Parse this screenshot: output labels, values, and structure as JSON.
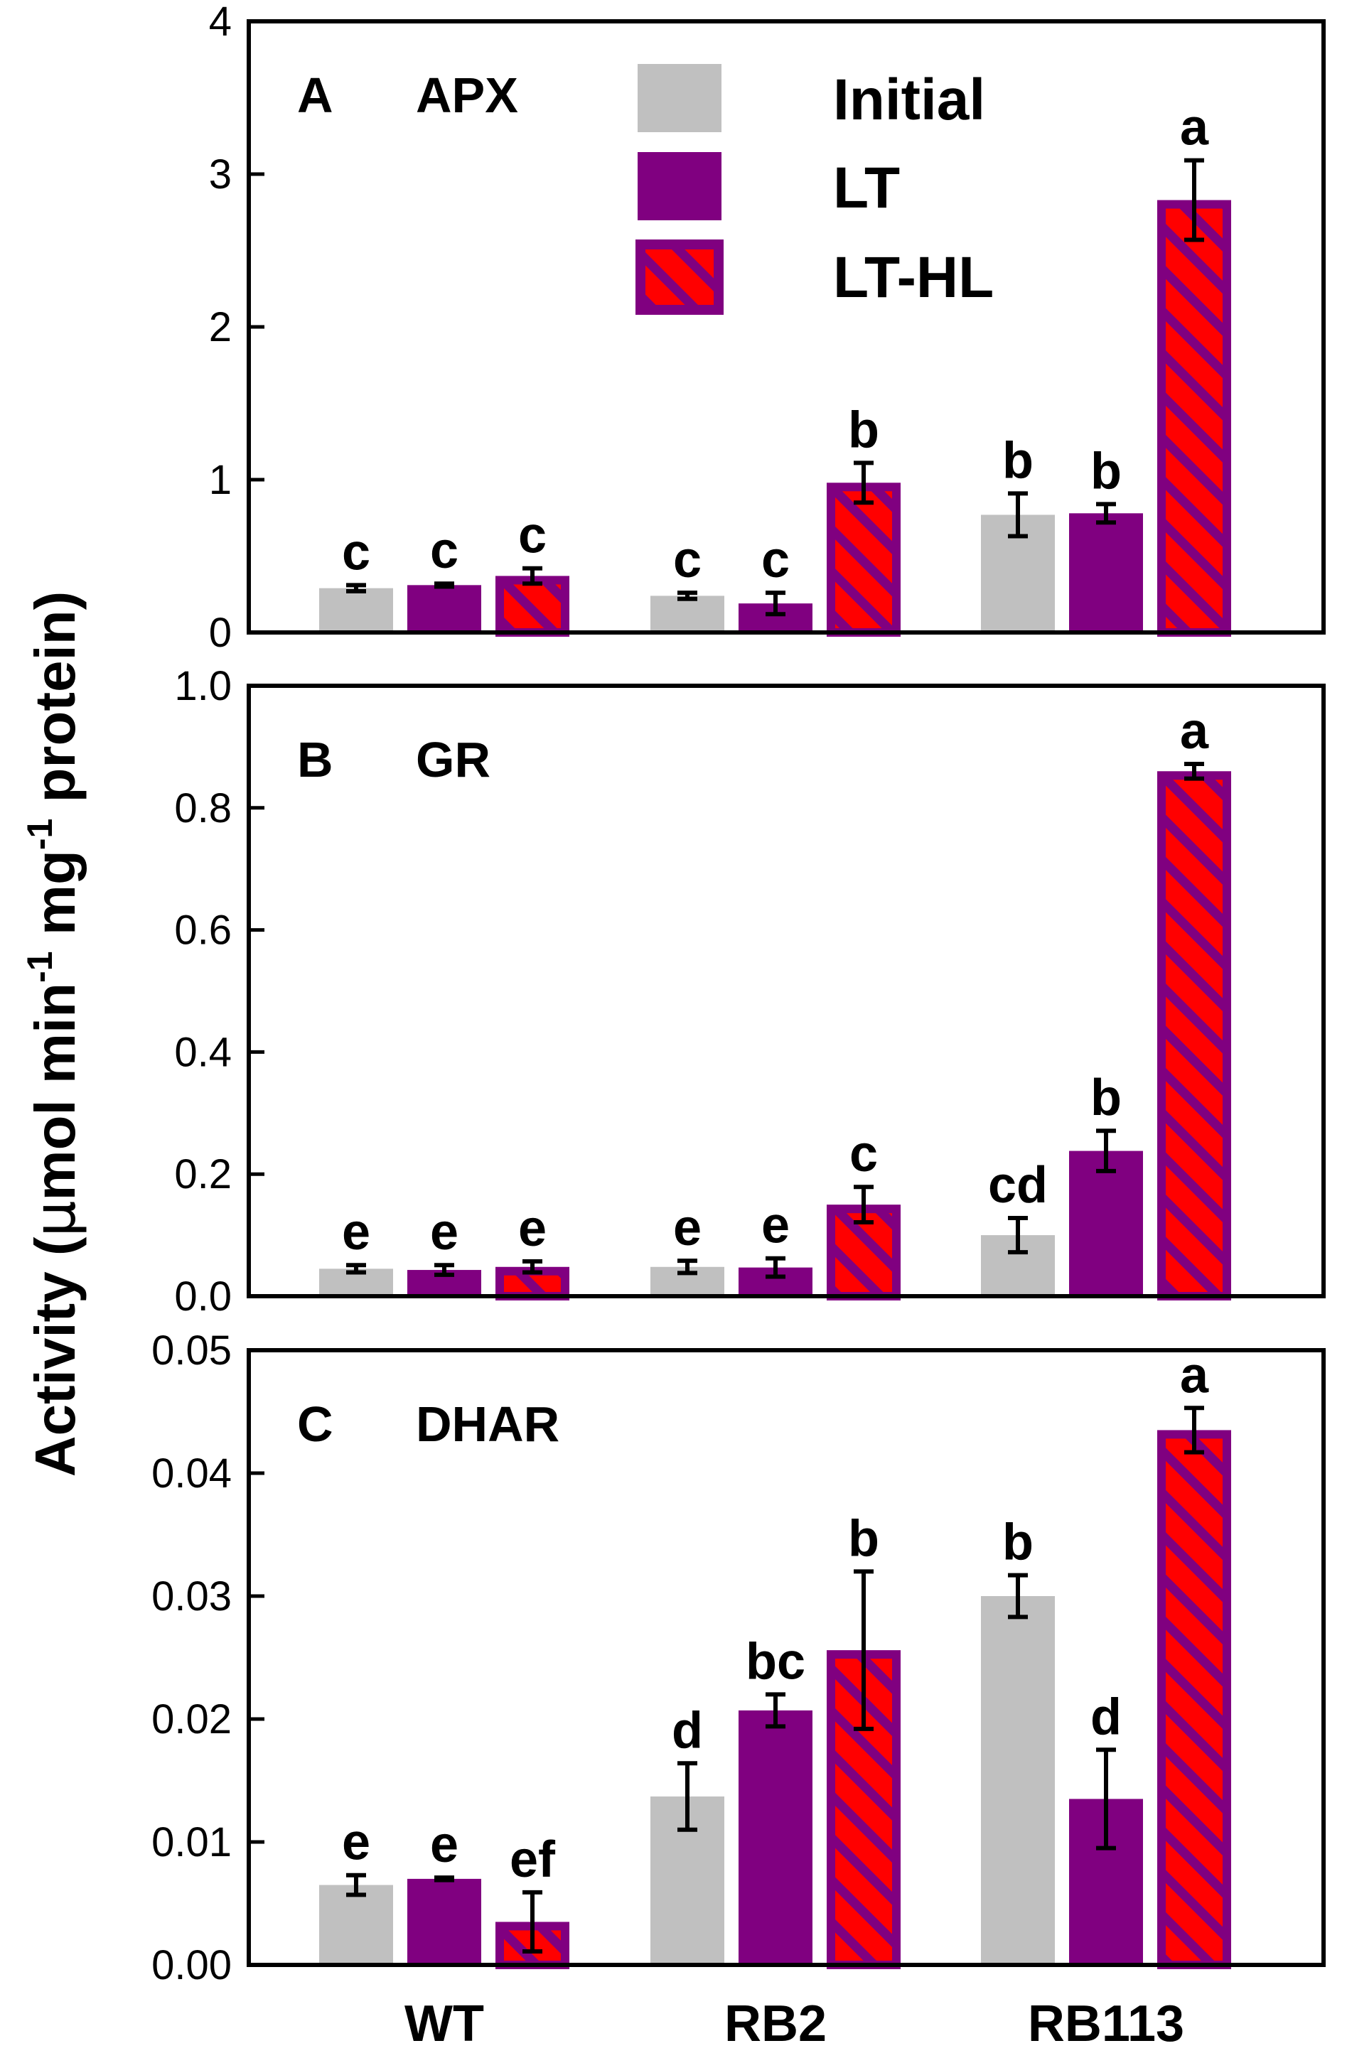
{
  "chart_data": [
    {
      "type": "bar",
      "panel_letter": "A",
      "title": "APX",
      "categories": [
        "WT",
        "RB2",
        "RB113"
      ],
      "ylim": [
        0,
        4
      ],
      "yticks": [
        "0",
        "1",
        "2",
        "3",
        "4"
      ],
      "series": [
        {
          "name": "Initial",
          "values": [
            0.29,
            0.24,
            0.77
          ],
          "errors": [
            0.02,
            0.02,
            0.14
          ],
          "labels": [
            "c",
            "c",
            "b"
          ]
        },
        {
          "name": "LT",
          "values": [
            0.31,
            0.19,
            0.78
          ],
          "errors": [
            0.01,
            0.07,
            0.06
          ],
          "labels": [
            "c",
            "c",
            "b"
          ]
        },
        {
          "name": "LT-HL",
          "values": [
            0.37,
            0.98,
            2.83
          ],
          "errors": [
            0.05,
            0.13,
            0.26
          ],
          "labels": [
            "c",
            "b",
            "a"
          ]
        }
      ]
    },
    {
      "type": "bar",
      "panel_letter": "B",
      "title": "GR",
      "categories": [
        "WT",
        "RB2",
        "RB113"
      ],
      "ylim": [
        0,
        1.0
      ],
      "yticks": [
        "0.0",
        "0.2",
        "0.4",
        "0.6",
        "0.8",
        "1.0"
      ],
      "series": [
        {
          "name": "Initial",
          "values": [
            0.045,
            0.048,
            0.1
          ],
          "errors": [
            0.006,
            0.01,
            0.028
          ],
          "labels": [
            "e",
            "e",
            "cd"
          ]
        },
        {
          "name": "LT",
          "values": [
            0.043,
            0.047,
            0.238
          ],
          "errors": [
            0.008,
            0.015,
            0.033
          ],
          "labels": [
            "e",
            "e",
            "b"
          ]
        },
        {
          "name": "LT-HL",
          "values": [
            0.048,
            0.15,
            0.86
          ],
          "errors": [
            0.009,
            0.029,
            0.012
          ],
          "labels": [
            "e",
            "c",
            "a"
          ]
        }
      ]
    },
    {
      "type": "bar",
      "panel_letter": "C",
      "title": "DHAR",
      "categories": [
        "WT",
        "RB2",
        "RB113"
      ],
      "ylim": [
        0,
        0.05
      ],
      "yticks": [
        "0.00",
        "0.01",
        "0.02",
        "0.03",
        "0.04",
        "0.05"
      ],
      "series": [
        {
          "name": "Initial",
          "values": [
            0.0065,
            0.0137,
            0.03
          ],
          "errors": [
            0.0008,
            0.0027,
            0.0017
          ],
          "labels": [
            "e",
            "d",
            "b"
          ]
        },
        {
          "name": "LT",
          "values": [
            0.007,
            0.0207,
            0.0135
          ],
          "errors": [
            0.0001,
            0.0013,
            0.004
          ],
          "labels": [
            "e",
            "bc",
            "d"
          ]
        },
        {
          "name": "LT-HL",
          "values": [
            0.0035,
            0.0256,
            0.0435
          ],
          "errors": [
            0.0024,
            0.0064,
            0.0018
          ],
          "labels": [
            "ef",
            "b",
            "a"
          ]
        }
      ]
    }
  ],
  "legend": {
    "items": [
      {
        "label": "Initial",
        "style": "initial"
      },
      {
        "label": "LT",
        "style": "lt"
      },
      {
        "label": "LT-HL",
        "style": "lthl"
      }
    ],
    "position": "top-right of panel A"
  },
  "ylabel": {
    "prefix": "Activity (",
    "mu": "μ",
    "part1": "mol min",
    "sup1": "-1",
    "part2": " mg",
    "sup2": "-1",
    "suffix": " protein)"
  },
  "xlabels": [
    "WT",
    "RB2",
    "RB113"
  ],
  "colors": {
    "initial": "#c0c0c0",
    "lt": "#800080",
    "lthl_fill": "#ff0000",
    "lthl_hatch": "#800080",
    "axis": "#000000"
  }
}
